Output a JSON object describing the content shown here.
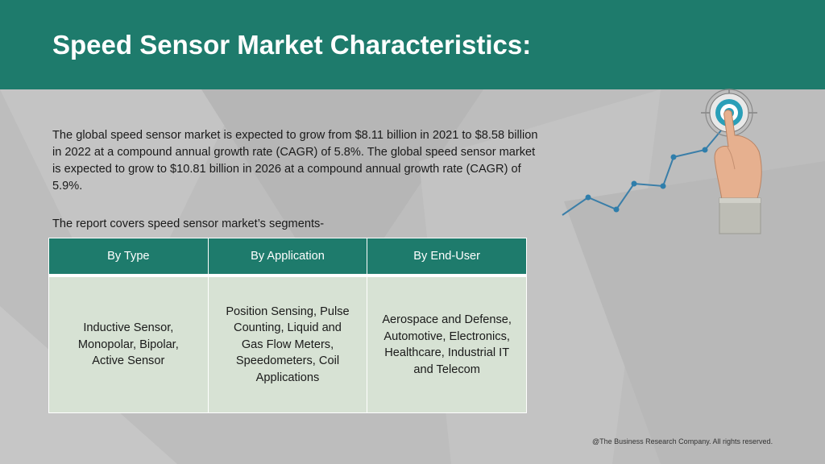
{
  "header": {
    "title": "Speed Sensor Market Characteristics:"
  },
  "intro_text": "The global speed sensor market is expected to grow from $8.11 billion in 2021 to $8.58 billion in 2022 at a compound annual growth rate (CAGR) of 5.8%. The global speed sensor market is expected to grow to $10.81 billion in 2026 at a compound annual growth rate (CAGR) of 5.9%.",
  "covers_text": "The report covers speed sensor market’s segments-",
  "segments": {
    "headers": [
      "By Type",
      "By Application",
      "By End-User"
    ],
    "cells": [
      "Inductive Sensor, Monopolar, Bipolar, Active Sensor",
      "Position Sensing, Pulse Counting, Liquid and Gas Flow Meters, Speedometers, Coil Applications",
      "Aerospace and Defense, Automotive, Electronics, Healthcare, Industrial IT and Telecom"
    ]
  },
  "illustration": {
    "icon": "target-finger-icon",
    "line_color": "#3a7ea8",
    "target_color": "#2a9fb8"
  },
  "colors": {
    "header_bg": "#1e7b6c",
    "cell_bg": "#d7e2d4",
    "page_bg": "#bdbdbd"
  },
  "footer": {
    "copyright": "@The Business Research Company. All rights reserved."
  }
}
